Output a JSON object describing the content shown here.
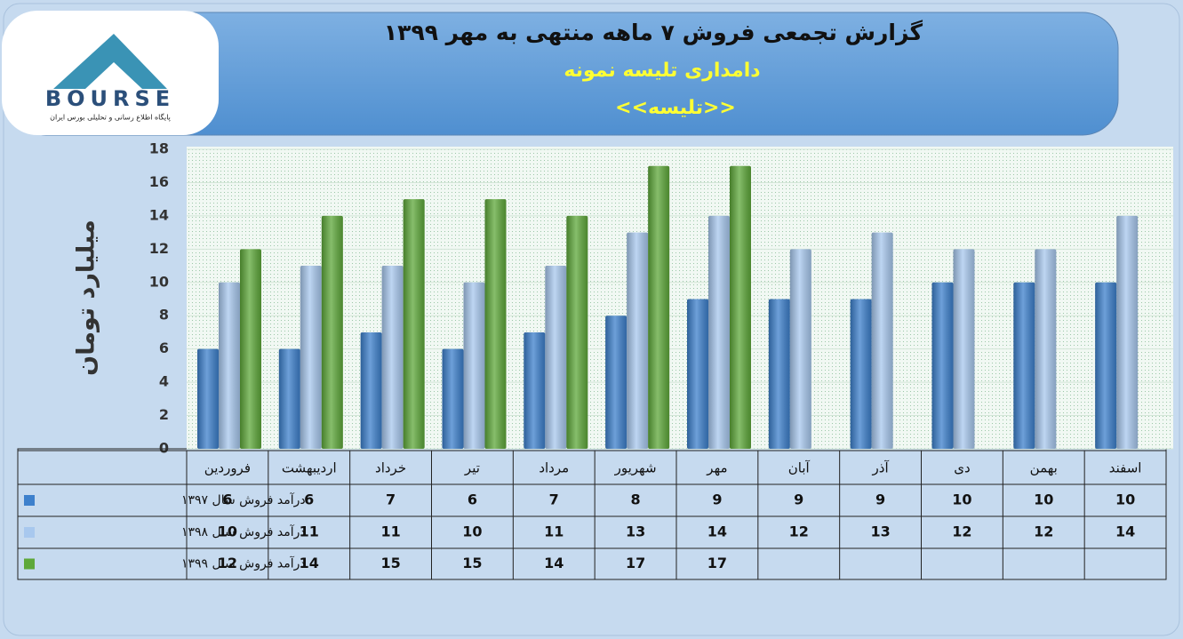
{
  "logo": {
    "name": "BOURSE",
    "tagline": "پایگاه اطلاع رسانی و تحلیلی بورس ایران"
  },
  "chart_data": {
    "type": "bar",
    "title": "گزارش تجمعی فروش ۷ ماهه منتهی به مهر ۱۳۹۹",
    "subtitle": "دامداری تلیسه نمونه",
    "subtitle2": "<<تلیسه>>",
    "y_label": "میلیارد تومان",
    "categories": [
      "فروردین",
      "اردیبهشت",
      "خرداد",
      "تیر",
      "مرداد",
      "شهریور",
      "مهر",
      "آبان",
      "آذر",
      "دی",
      "بهمن",
      "اسفند"
    ],
    "series": [
      {
        "name": "درآمد فروش سال ۱۳۹۷",
        "color": "#3d80cc",
        "values": [
          6,
          6,
          7,
          6,
          7,
          8,
          9,
          9,
          9,
          10,
          10,
          10
        ]
      },
      {
        "name": "درآمد فروش سال ۱۳۹۸",
        "color": "#a8c8ee",
        "values": [
          10,
          11,
          11,
          10,
          11,
          13,
          14,
          12,
          13,
          12,
          12,
          14
        ]
      },
      {
        "name": "درآمد فروش سال ۱۳۹۹",
        "color": "#5ea83a",
        "values": [
          12,
          14,
          15,
          15,
          14,
          17,
          17,
          null,
          null,
          null,
          null,
          null
        ]
      }
    ],
    "ylim": [
      0,
      18
    ],
    "yticks": [
      0,
      2,
      4,
      6,
      8,
      10,
      12,
      14,
      16,
      18
    ],
    "grid": true
  }
}
